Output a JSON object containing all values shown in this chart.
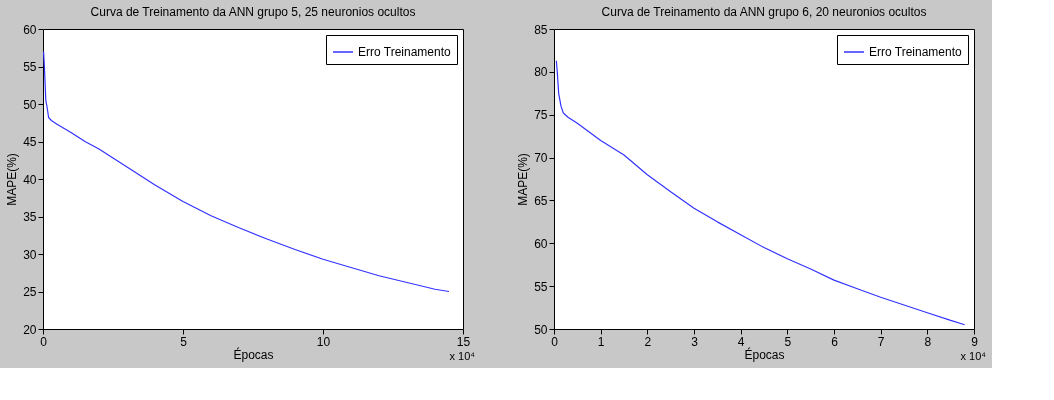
{
  "chart_data": [
    {
      "type": "line",
      "title": "Curva de Treinamento da ANN grupo 5, 25 neuronios ocultos",
      "xlabel": "Épocas",
      "ylabel": "MAPE(%)",
      "series": [
        {
          "name": "Erro Treinamento",
          "color": "#3333ff",
          "x": [
            0.02,
            0.05,
            0.1,
            0.15,
            0.2,
            0.3,
            0.5,
            1,
            1.5,
            2,
            3,
            4,
            5,
            6,
            7,
            8,
            9,
            10,
            11,
            12,
            13,
            14,
            14.5
          ],
          "values": [
            57,
            55,
            50.5,
            49.5,
            48.2,
            47.8,
            47.3,
            46.2,
            45,
            44,
            41.6,
            39.2,
            37,
            35.1,
            33.5,
            32,
            30.6,
            29.3,
            28.2,
            27.1,
            26.2,
            25.3,
            25
          ]
        }
      ],
      "xlim": [
        0,
        15
      ],
      "ylim": [
        20,
        60
      ],
      "xticks": [
        0,
        5,
        10,
        15
      ],
      "yticks": [
        20,
        25,
        30,
        35,
        40,
        45,
        50,
        55,
        60
      ],
      "grid": false,
      "legend": "top right",
      "annotations": [
        "x 10⁴"
      ]
    },
    {
      "type": "line",
      "title": "Curva de Treinamento da ANN grupo 6, 20 neuronios ocultos",
      "xlabel": "Épocas",
      "ylabel": "MAPE(%)",
      "series": [
        {
          "name": "Erro Treinamento",
          "color": "#3333ff",
          "x": [
            0.05,
            0.07,
            0.1,
            0.15,
            0.2,
            0.3,
            0.5,
            1,
            1.5,
            2,
            2.5,
            3,
            3.5,
            4,
            4.5,
            5,
            5.5,
            6,
            6.5,
            7,
            7.5,
            8,
            8.5,
            8.8
          ],
          "values": [
            81.3,
            80,
            77.5,
            76,
            75.2,
            74.7,
            74,
            72,
            70.3,
            68,
            66,
            64.1,
            62.5,
            61,
            59.5,
            58.2,
            57,
            55.7,
            54.7,
            53.7,
            52.8,
            51.9,
            51,
            50.5
          ]
        }
      ],
      "xlim": [
        0,
        9
      ],
      "ylim": [
        50,
        85
      ],
      "xticks": [
        0,
        1,
        2,
        3,
        4,
        5,
        6,
        7,
        8,
        9
      ],
      "yticks": [
        50,
        55,
        60,
        65,
        70,
        75,
        80,
        85
      ],
      "grid": false,
      "legend": "top right",
      "annotations": [
        "x 10⁴"
      ]
    }
  ]
}
